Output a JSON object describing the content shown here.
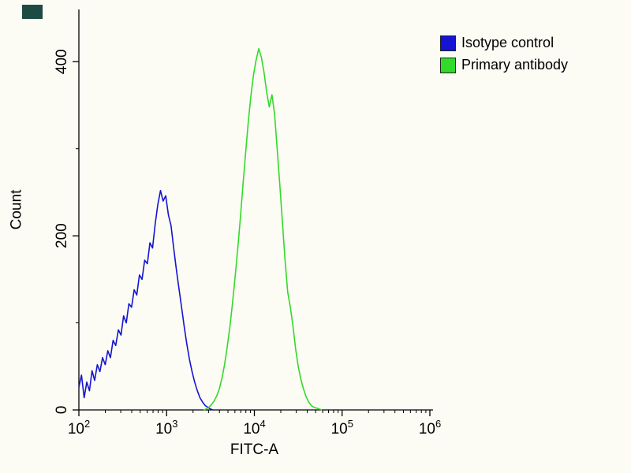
{
  "figure": {
    "corner_artifact_color": "#1d4b44",
    "background_color": "#fcfcf4",
    "axis_color": "#000000"
  },
  "chart_data": {
    "type": "line",
    "subtype": "flow-cytometry-histogram-overlay",
    "title": "",
    "xlabel": "FITC-A",
    "ylabel": "Count",
    "x_scale": "log10",
    "x_range_log10": [
      2,
      6
    ],
    "x_major_tick_exponents": [
      2,
      3,
      4,
      5,
      6
    ],
    "x_tick_labels": [
      "10^2",
      "10^3",
      "10^4",
      "10^5",
      "10^6"
    ],
    "ylim": [
      0,
      460
    ],
    "y_major_ticks": [
      0,
      200,
      400
    ],
    "y_minor_ticks": [
      100,
      300
    ],
    "grid": false,
    "legend_position": "top-right-outside",
    "series": [
      {
        "name": "Isotype control",
        "color": "#1414d2",
        "peak_x_approx": 850,
        "peak_count_approx": 252,
        "points": [
          [
            2.0,
            26
          ],
          [
            2.03,
            40
          ],
          [
            2.06,
            14
          ],
          [
            2.09,
            32
          ],
          [
            2.12,
            22
          ],
          [
            2.15,
            45
          ],
          [
            2.18,
            34
          ],
          [
            2.21,
            52
          ],
          [
            2.24,
            44
          ],
          [
            2.27,
            60
          ],
          [
            2.3,
            52
          ],
          [
            2.33,
            68
          ],
          [
            2.36,
            60
          ],
          [
            2.39,
            80
          ],
          [
            2.42,
            74
          ],
          [
            2.45,
            92
          ],
          [
            2.48,
            86
          ],
          [
            2.51,
            108
          ],
          [
            2.54,
            100
          ],
          [
            2.57,
            122
          ],
          [
            2.6,
            118
          ],
          [
            2.63,
            138
          ],
          [
            2.66,
            132
          ],
          [
            2.69,
            155
          ],
          [
            2.72,
            150
          ],
          [
            2.75,
            172
          ],
          [
            2.78,
            168
          ],
          [
            2.81,
            192
          ],
          [
            2.84,
            186
          ],
          [
            2.87,
            214
          ],
          [
            2.9,
            236
          ],
          [
            2.93,
            252
          ],
          [
            2.96,
            240
          ],
          [
            2.99,
            246
          ],
          [
            3.02,
            224
          ],
          [
            3.05,
            212
          ],
          [
            3.08,
            186
          ],
          [
            3.11,
            162
          ],
          [
            3.14,
            140
          ],
          [
            3.17,
            118
          ],
          [
            3.2,
            96
          ],
          [
            3.23,
            76
          ],
          [
            3.26,
            58
          ],
          [
            3.29,
            44
          ],
          [
            3.32,
            32
          ],
          [
            3.35,
            22
          ],
          [
            3.38,
            14
          ],
          [
            3.41,
            9
          ],
          [
            3.44,
            5
          ],
          [
            3.47,
            3
          ],
          [
            3.5,
            1
          ],
          [
            3.53,
            0
          ]
        ]
      },
      {
        "name": "Primary antibody",
        "color": "#33d92b",
        "peak_x_approx": 12000,
        "peak_count_approx": 415,
        "points": [
          [
            3.42,
            0
          ],
          [
            3.45,
            1
          ],
          [
            3.48,
            3
          ],
          [
            3.51,
            6
          ],
          [
            3.54,
            10
          ],
          [
            3.57,
            16
          ],
          [
            3.6,
            24
          ],
          [
            3.63,
            36
          ],
          [
            3.66,
            52
          ],
          [
            3.69,
            72
          ],
          [
            3.72,
            95
          ],
          [
            3.75,
            122
          ],
          [
            3.78,
            152
          ],
          [
            3.81,
            185
          ],
          [
            3.84,
            220
          ],
          [
            3.87,
            258
          ],
          [
            3.9,
            295
          ],
          [
            3.93,
            330
          ],
          [
            3.96,
            360
          ],
          [
            3.99,
            385
          ],
          [
            4.02,
            402
          ],
          [
            4.05,
            415
          ],
          [
            4.08,
            405
          ],
          [
            4.11,
            388
          ],
          [
            4.14,
            365
          ],
          [
            4.17,
            348
          ],
          [
            4.2,
            362
          ],
          [
            4.23,
            340
          ],
          [
            4.26,
            300
          ],
          [
            4.29,
            258
          ],
          [
            4.32,
            215
          ],
          [
            4.35,
            172
          ],
          [
            4.38,
            135
          ],
          [
            4.41,
            118
          ],
          [
            4.44,
            96
          ],
          [
            4.47,
            70
          ],
          [
            4.5,
            50
          ],
          [
            4.53,
            35
          ],
          [
            4.56,
            24
          ],
          [
            4.59,
            15
          ],
          [
            4.62,
            9
          ],
          [
            4.65,
            5
          ],
          [
            4.68,
            3
          ],
          [
            4.71,
            2
          ],
          [
            4.74,
            1
          ],
          [
            4.77,
            0
          ]
        ]
      }
    ]
  }
}
